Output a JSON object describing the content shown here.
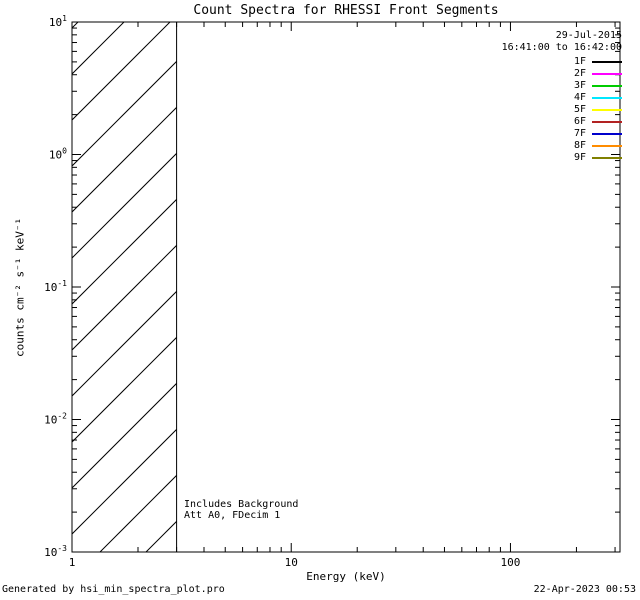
{
  "chart_data": {
    "type": "line",
    "title": "Count Spectra for RHESSI Front Segments",
    "xlabel": "Energy (keV)",
    "ylabel": "counts cm⁻² s⁻¹ keV⁻¹",
    "x_scale": "log",
    "y_scale": "log",
    "xlim": [
      1,
      316
    ],
    "ylim": [
      0.001,
      10
    ],
    "grid": false,
    "x_ticks": [
      {
        "value": 1,
        "label": "1"
      },
      {
        "value": 10,
        "label": "10"
      },
      {
        "value": 100,
        "label": "100"
      }
    ],
    "y_ticks": [
      {
        "value": 0.001,
        "mantissa": "10",
        "exponent": "-3"
      },
      {
        "value": 0.01,
        "mantissa": "10",
        "exponent": "-2"
      },
      {
        "value": 0.1,
        "mantissa": "10",
        "exponent": "-1"
      },
      {
        "value": 1,
        "mantissa": "10",
        "exponent": "0"
      },
      {
        "value": 10,
        "mantissa": "10",
        "exponent": "1"
      }
    ],
    "hatched_region": {
      "x_start": 1,
      "x_end": 3,
      "style": "diagonal-hatch"
    },
    "annotations": [
      {
        "text": "Includes Background"
      },
      {
        "text": "Att A0, FDecim 1"
      }
    ],
    "series": [
      {
        "name": "1F",
        "color": "#000000",
        "values": []
      },
      {
        "name": "2F",
        "color": "#ff00ff",
        "values": []
      },
      {
        "name": "3F",
        "color": "#00cc00",
        "values": []
      },
      {
        "name": "4F",
        "color": "#00e8ff",
        "values": []
      },
      {
        "name": "5F",
        "color": "#ffff00",
        "values": []
      },
      {
        "name": "6F",
        "color": "#b22222",
        "values": []
      },
      {
        "name": "7F",
        "color": "#0000cc",
        "values": []
      },
      {
        "name": "8F",
        "color": "#ff8c00",
        "values": []
      },
      {
        "name": "9F",
        "color": "#808000",
        "values": []
      }
    ],
    "legend": {
      "position": "top-right",
      "date": "29-Jul-2015",
      "time_range": "16:41:00 to 16:42:00",
      "entries": [
        {
          "label": "1F",
          "color": "#000000"
        },
        {
          "label": "2F",
          "color": "#ff00ff"
        },
        {
          "label": "3F",
          "color": "#00cc00"
        },
        {
          "label": "4F",
          "color": "#00e8ff"
        },
        {
          "label": "5F",
          "color": "#ffff00"
        },
        {
          "label": "6F",
          "color": "#b22222"
        },
        {
          "label": "7F",
          "color": "#0000cc"
        },
        {
          "label": "8F",
          "color": "#ff8c00"
        },
        {
          "label": "9F",
          "color": "#808000"
        }
      ]
    }
  },
  "footer": {
    "left": "Generated by hsi_min_spectra_plot.pro",
    "right": "22-Apr-2023 00:53"
  }
}
